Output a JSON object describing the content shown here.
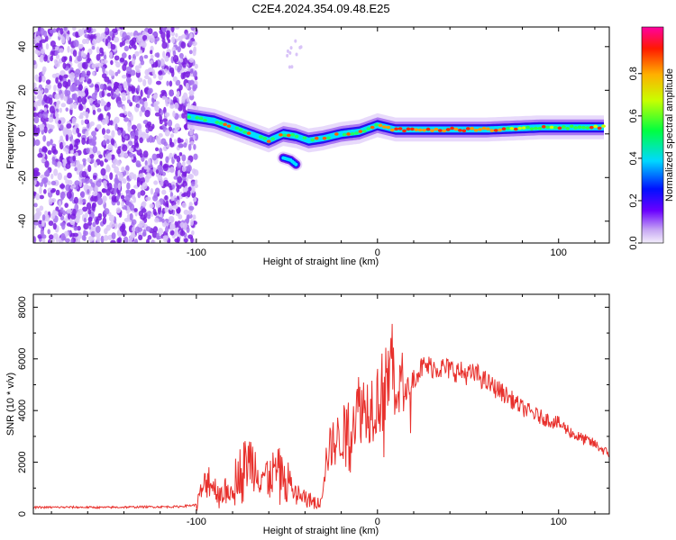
{
  "title": "C2E4.2024.354.09.48.E25",
  "colors": {
    "snr_line": "#e8302c",
    "noise_dot": "#8a2be2",
    "axis": "#000000"
  },
  "chart_data": [
    {
      "type": "heatmap",
      "xlabel": "Height of straight line (km)",
      "ylabel": "Frequency (Hz)",
      "xlim": [
        -190,
        128
      ],
      "ylim": [
        -50,
        49
      ],
      "x_ticks": [
        "-100",
        "0",
        "100"
      ],
      "y_ticks": [
        "-40",
        "-20",
        "0",
        "20",
        "40"
      ],
      "colorbar": {
        "label": "Normalized spectral amplitude",
        "range": [
          0,
          1
        ],
        "ticks": [
          "0.0",
          "0.2",
          "0.4",
          "0.6",
          "0.8"
        ],
        "colormap": "rainbow (magenta/white to blue to cyan to green to yellow to red to magenta)"
      },
      "ridge_track": {
        "description": "Main spectral ridge (frequency vs height)",
        "x": [
          -105,
          -90,
          -80,
          -70,
          -60,
          -52,
          -45,
          -38,
          -30,
          -20,
          -10,
          0,
          10,
          30,
          60,
          90,
          125
        ],
        "y": [
          8,
          6,
          3,
          0,
          -3,
          0,
          -1,
          -3,
          -2,
          0,
          1,
          4,
          2,
          2,
          2,
          3,
          3
        ]
      },
      "secondary_branch": {
        "x": [
          -52,
          -48,
          -45
        ],
        "y": [
          -11,
          -12,
          -14
        ]
      },
      "noise_region": {
        "x": [
          -190,
          -102
        ],
        "description": "scattered low-amplitude speckle across all frequencies"
      }
    },
    {
      "type": "line",
      "xlabel": "Height of straight line (km)",
      "ylabel": "SNR (10 * v/v)",
      "xlim": [
        -190,
        128
      ],
      "ylim": [
        0,
        8500
      ],
      "x_ticks": [
        "-100",
        "0",
        "100"
      ],
      "y_ticks": [
        "0",
        "2000",
        "4000",
        "6000",
        "8000"
      ],
      "series": [
        {
          "x": [
            -190,
            -170,
            -150,
            -130,
            -110,
            -100,
            -97,
            -93,
            -90,
            -85,
            -80,
            -75,
            -70,
            -65,
            -60,
            -55,
            -50,
            -45,
            -40,
            -35,
            -32,
            -28,
            -25,
            -20,
            -15,
            -10,
            -5,
            0,
            5,
            8,
            10,
            12,
            15,
            20,
            25,
            30,
            35,
            40,
            45,
            50,
            55,
            60,
            70,
            80,
            90,
            100,
            110,
            120,
            128
          ],
          "y": [
            250,
            260,
            250,
            270,
            280,
            350,
            900,
            1400,
            1000,
            800,
            1300,
            1800,
            2100,
            1600,
            1500,
            1700,
            1400,
            800,
            600,
            500,
            400,
            2200,
            2700,
            3000,
            3500,
            4200,
            4100,
            4500,
            4900,
            6000,
            5300,
            4800,
            4700,
            5300,
            5700,
            5700,
            5650,
            5600,
            5500,
            5400,
            5400,
            5100,
            4650,
            4100,
            3750,
            3500,
            3000,
            2700,
            2300
          ]
        }
      ]
    }
  ]
}
